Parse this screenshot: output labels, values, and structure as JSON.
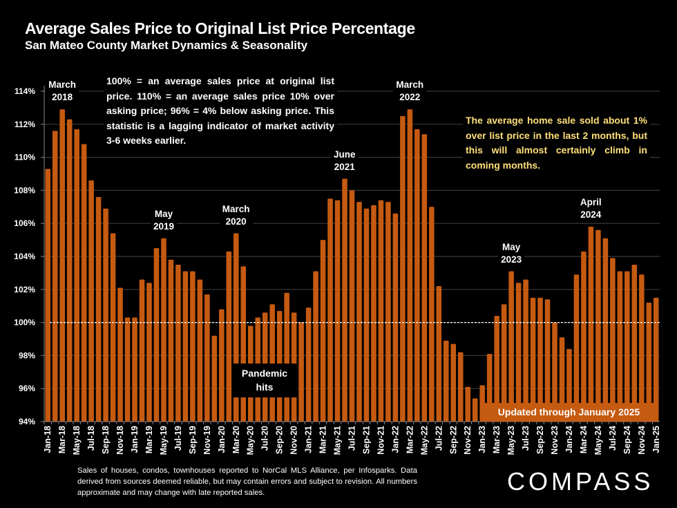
{
  "header": {
    "title": "Average Sales Price to Original List Price Percentage",
    "subtitle": "San Mateo County Market Dynamics & Seasonality"
  },
  "colors": {
    "bar": "#c55a11",
    "background": "#000000",
    "note_highlight": "#ffe07a",
    "reference_line": "#ffffff",
    "grid": "#3a3a3a"
  },
  "annotations": {
    "definition_note": "100% = an average sales price at original list price. 110% = an average sales price 10% over asking price; 96% = 4% below asking price. This statistic is a lagging indicator of market activity 3-6 weeks earlier.",
    "current_note": "The average home sale sold about 1% over list price in the last 2 months, but this will almost certainly climb in coming months.",
    "pandemic": [
      "Pandemic",
      "hits"
    ],
    "updated": "Updated through January 2025",
    "peaks": [
      {
        "line1": "March",
        "line2": "2018",
        "month": "Mar-18"
      },
      {
        "line1": "May",
        "line2": "2019",
        "month": "May-19"
      },
      {
        "line1": "March",
        "line2": "2020",
        "month": "Mar-20"
      },
      {
        "line1": "June",
        "line2": "2021",
        "month": "Jun-21"
      },
      {
        "line1": "March",
        "line2": "2022",
        "month": "Mar-22"
      },
      {
        "line1": "May",
        "line2": "2023",
        "month": "May-23"
      },
      {
        "line1": "April",
        "line2": "2024",
        "month": "Apr-24"
      }
    ]
  },
  "footer": {
    "source_note": "Sales of houses, condos, townhouses reported to NorCal MLS Alliance, per Infosparks. Data derived from sources deemed reliable, but may contain errors and subject to revision. All numbers approximate and may change with late reported sales.",
    "logo": "COMPASS"
  },
  "chart_data": {
    "type": "bar",
    "title": "Average Sales Price to Original List Price Percentage",
    "subtitle": "San Mateo County Market Dynamics & Seasonality",
    "xlabel": "",
    "ylabel": "",
    "ylim": [
      94,
      114
    ],
    "y_ticks": [
      "94%",
      "96%",
      "98%",
      "100%",
      "102%",
      "104%",
      "106%",
      "108%",
      "110%",
      "112%",
      "114%"
    ],
    "y_tick_values": [
      94,
      96,
      98,
      100,
      102,
      104,
      106,
      108,
      110,
      112,
      114
    ],
    "grid": true,
    "reference_line": 100,
    "x_tick_labels_every": 2,
    "categories": [
      "Jan-18",
      "Feb-18",
      "Mar-18",
      "Apr-18",
      "May-18",
      "Jun-18",
      "Jul-18",
      "Aug-18",
      "Sep-18",
      "Oct-18",
      "Nov-18",
      "Dec-18",
      "Jan-19",
      "Feb-19",
      "Mar-19",
      "Apr-19",
      "May-19",
      "Jun-19",
      "Jul-19",
      "Aug-19",
      "Sep-19",
      "Oct-19",
      "Nov-19",
      "Dec-19",
      "Jan-20",
      "Feb-20",
      "Mar-20",
      "Apr-20",
      "May-20",
      "Jun-20",
      "Jul-20",
      "Aug-20",
      "Sep-20",
      "Oct-20",
      "Nov-20",
      "Dec-20",
      "Jan-21",
      "Feb-21",
      "Mar-21",
      "Apr-21",
      "May-21",
      "Jun-21",
      "Jul-21",
      "Aug-21",
      "Sep-21",
      "Oct-21",
      "Nov-21",
      "Dec-21",
      "Jan-22",
      "Feb-22",
      "Mar-22",
      "Apr-22",
      "May-22",
      "Jun-22",
      "Jul-22",
      "Aug-22",
      "Sep-22",
      "Oct-22",
      "Nov-22",
      "Dec-22",
      "Jan-23",
      "Feb-23",
      "Mar-23",
      "Apr-23",
      "May-23",
      "Jun-23",
      "Jul-23",
      "Aug-23",
      "Sep-23",
      "Oct-23",
      "Nov-23",
      "Dec-23",
      "Jan-24",
      "Feb-24",
      "Mar-24",
      "Apr-24",
      "May-24",
      "Jun-24",
      "Jul-24",
      "Aug-24",
      "Sep-24",
      "Oct-24",
      "Nov-24",
      "Dec-24",
      "Jan-25"
    ],
    "series": [
      {
        "name": "Avg Sales Price to Original List Price %",
        "values": [
          109.3,
          111.6,
          112.9,
          112.3,
          111.7,
          110.8,
          108.6,
          107.6,
          106.9,
          105.4,
          102.1,
          100.3,
          100.3,
          102.6,
          102.4,
          104.5,
          105.1,
          103.8,
          103.5,
          103.1,
          103.1,
          102.6,
          101.7,
          99.2,
          100.8,
          104.3,
          105.4,
          103.4,
          99.8,
          100.3,
          100.6,
          101.1,
          100.7,
          101.8,
          100.6,
          100.0,
          100.9,
          103.1,
          105.0,
          107.5,
          107.4,
          108.7,
          108.0,
          107.3,
          106.9,
          107.1,
          107.4,
          107.3,
          106.6,
          112.5,
          112.9,
          111.7,
          111.4,
          107.0,
          102.2,
          98.9,
          98.7,
          98.2,
          96.1,
          95.4,
          96.2,
          98.1,
          100.4,
          101.1,
          103.1,
          102.4,
          102.6,
          101.5,
          101.5,
          101.4,
          100.0,
          99.1,
          98.4,
          102.9,
          104.3,
          105.8,
          105.6,
          105.1,
          103.9,
          103.1,
          103.1,
          103.5,
          102.9,
          101.2,
          101.5
        ]
      }
    ]
  }
}
